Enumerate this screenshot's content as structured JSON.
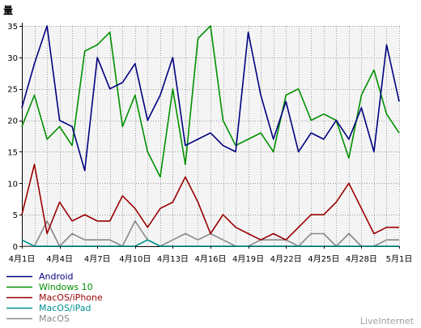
{
  "chart_data": {
    "type": "line",
    "ylabel": "量",
    "xlabel": "",
    "ylim": [
      0,
      35
    ],
    "yticks": [
      0,
      5,
      10,
      15,
      20,
      25,
      30,
      35
    ],
    "categories": [
      "4月1日",
      "4月2日",
      "4月3日",
      "4月4日",
      "4月5日",
      "4月6日",
      "4月7日",
      "4月8日",
      "4月9日",
      "4月10日",
      "4月11日",
      "4月12日",
      "4月13日",
      "4月14日",
      "4月15日",
      "4月16日",
      "4月17日",
      "4月18日",
      "4月19日",
      "4月20日",
      "4月21日",
      "4月22日",
      "4月23日",
      "4月24日",
      "4月25日",
      "4月26日",
      "4月27日",
      "4月28日",
      "4月29日",
      "4月30日",
      "5月1日"
    ],
    "xtick_labels": [
      "4月1日",
      "4月4日",
      "4月7日",
      "4月10日",
      "4月13日",
      "4月16日",
      "4月19日",
      "4月22日",
      "4月25日",
      "4月28日",
      "5月1日"
    ],
    "grid": true,
    "legend_position": "bottom-left",
    "series": [
      {
        "name": "Android",
        "color": "#000080",
        "values": [
          22,
          29,
          35,
          20,
          19,
          12,
          30,
          25,
          26,
          29,
          20,
          24,
          30,
          16,
          17,
          18,
          16,
          15,
          34,
          24,
          17,
          23,
          15,
          18,
          17,
          20,
          17,
          22,
          15,
          32,
          23
        ]
      },
      {
        "name": "Windows 10",
        "color": "#009000",
        "values": [
          19,
          24,
          17,
          19,
          16,
          31,
          32,
          34,
          19,
          24,
          15,
          11,
          25,
          13,
          33,
          35,
          20,
          16,
          17,
          18,
          15,
          24,
          25,
          20,
          21,
          20,
          14,
          24,
          28,
          21,
          18
        ]
      },
      {
        "name": "MacOS/iPhone",
        "color": "#990000",
        "values": [
          5,
          13,
          2,
          7,
          4,
          5,
          4,
          4,
          8,
          6,
          3,
          6,
          7,
          11,
          7,
          2,
          5,
          3,
          2,
          1,
          2,
          1,
          3,
          5,
          5,
          7,
          10,
          6,
          2,
          3,
          3
        ]
      },
      {
        "name": "MacOS/iPad",
        "color": "#009090",
        "values": [
          1,
          0,
          0,
          0,
          0,
          0,
          0,
          0,
          0,
          0,
          1,
          0,
          0,
          0,
          0,
          0,
          0,
          0,
          0,
          0,
          0,
          0,
          0,
          0,
          0,
          0,
          0,
          0,
          0,
          0,
          0
        ]
      },
      {
        "name": "MacOS",
        "color": "#888888",
        "values": [
          0,
          0,
          4,
          0,
          2,
          1,
          1,
          1,
          0,
          4,
          1,
          0,
          1,
          2,
          1,
          2,
          1,
          0,
          0,
          1,
          1,
          1,
          0,
          2,
          2,
          0,
          2,
          0,
          0,
          1,
          1
        ]
      }
    ]
  },
  "watermark": "LiveInternet",
  "colors": {
    "plot_background": "#f4f4f4",
    "grid": "#9a9a9a",
    "axis": "#000000",
    "watermark": "#a0a0a0"
  }
}
